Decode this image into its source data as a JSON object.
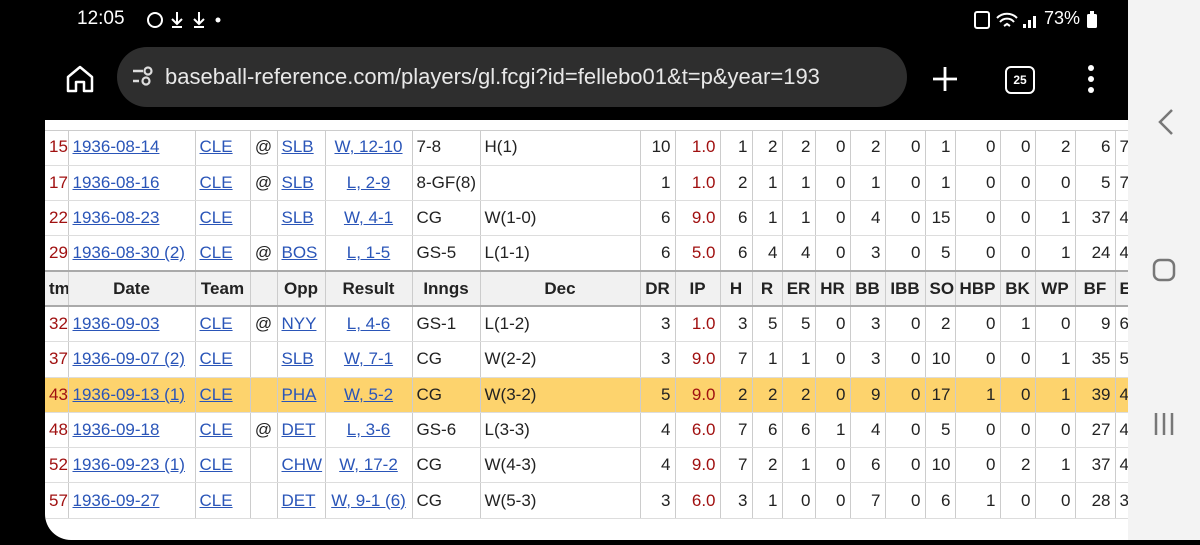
{
  "status": {
    "time": "12:05",
    "battery": "73%"
  },
  "browser": {
    "url": "baseball-reference.com/players/gl.fcgi?id=fellebo01&t=p&year=193",
    "tab_count": "25"
  },
  "table": {
    "header": [
      "tm",
      "Date",
      "Team",
      null,
      "Opp",
      "Result",
      "Inngs",
      "Dec",
      "DR",
      "IP",
      "H",
      "R",
      "ER",
      "HR",
      "BB",
      "IBB",
      "SO",
      "HBP",
      "BK",
      "WP",
      "BF",
      "E"
    ],
    "rows_above": [
      [
        "15",
        "1936-08-14",
        "CLE",
        "@",
        "SLB",
        "W, 12-10",
        "7-8",
        "H(1)",
        "10",
        "1.0",
        "1",
        "2",
        "2",
        "0",
        "2",
        "0",
        "1",
        "0",
        "0",
        "2",
        "6",
        "7"
      ],
      [
        "17",
        "1936-08-16",
        "CLE",
        "@",
        "SLB",
        "L, 2-9",
        "8-GF(8)",
        null,
        "1",
        "1.0",
        "2",
        "1",
        "1",
        "0",
        "1",
        "0",
        "1",
        "0",
        "0",
        "0",
        "5",
        "7"
      ],
      [
        "22",
        "1936-08-23",
        "CLE",
        null,
        "SLB",
        "W, 4-1",
        "CG",
        "W(1-0)",
        "6",
        "9.0",
        "6",
        "1",
        "1",
        "0",
        "4",
        "0",
        "15",
        "0",
        "0",
        "1",
        "37",
        "4"
      ],
      [
        "29",
        "1936-08-30 (2)",
        "CLE",
        "@",
        "BOS",
        "L, 1-5",
        "GS-5",
        "L(1-1)",
        "6",
        "5.0",
        "6",
        "4",
        "4",
        "0",
        "3",
        "0",
        "5",
        "0",
        "0",
        "1",
        "24",
        "4"
      ]
    ],
    "rows_below": [
      [
        "32",
        "1936-09-03",
        "CLE",
        "@",
        "NYY",
        "L, 4-6",
        "GS-1",
        "L(1-2)",
        "3",
        "1.0",
        "3",
        "5",
        "5",
        "0",
        "3",
        "0",
        "2",
        "0",
        "1",
        "0",
        "9",
        "6"
      ],
      [
        "37",
        "1936-09-07 (2)",
        "CLE",
        null,
        "SLB",
        "W, 7-1",
        "CG",
        "W(2-2)",
        "3",
        "9.0",
        "7",
        "1",
        "1",
        "0",
        "3",
        "0",
        "10",
        "0",
        "0",
        "1",
        "35",
        "5"
      ],
      [
        "43",
        "1936-09-13 (1)",
        "CLE",
        null,
        "PHA",
        "W, 5-2",
        "CG",
        "W(3-2)",
        "5",
        "9.0",
        "2",
        "2",
        "2",
        "0",
        "9",
        "0",
        "17",
        "1",
        "0",
        "1",
        "39",
        "4"
      ],
      [
        "48",
        "1936-09-18",
        "CLE",
        "@",
        "DET",
        "L, 3-6",
        "GS-6",
        "L(3-3)",
        "4",
        "6.0",
        "7",
        "6",
        "6",
        "1",
        "4",
        "0",
        "5",
        "0",
        "0",
        "0",
        "27",
        "4"
      ],
      [
        "52",
        "1936-09-23 (1)",
        "CLE",
        null,
        "CHW",
        "W, 17-2",
        "CG",
        "W(4-3)",
        "4",
        "9.0",
        "7",
        "2",
        "1",
        "0",
        "6",
        "0",
        "10",
        "0",
        "2",
        "1",
        "37",
        "4"
      ],
      [
        "57",
        "1936-09-27",
        "CLE",
        null,
        "DET",
        "W, 9-1 (6)",
        "CG",
        "W(5-3)",
        "3",
        "6.0",
        "3",
        "1",
        "0",
        "0",
        "7",
        "0",
        "6",
        "1",
        "0",
        "0",
        "28",
        "3"
      ]
    ],
    "highlighted_row_below": 2
  }
}
